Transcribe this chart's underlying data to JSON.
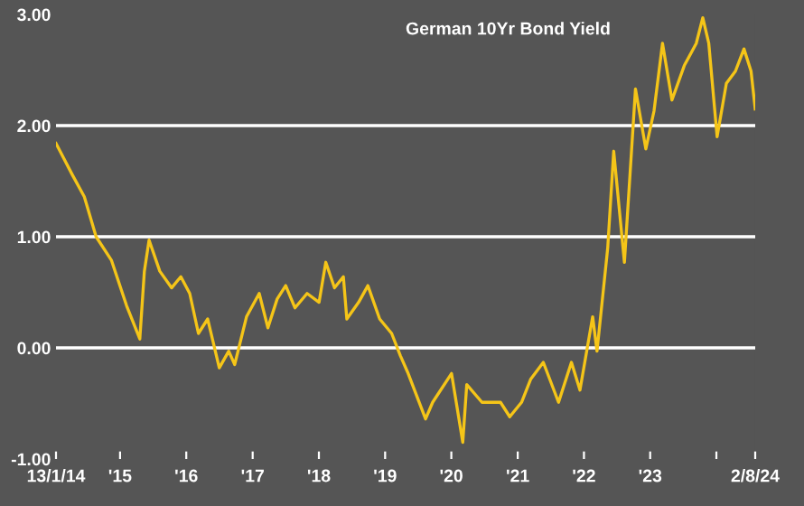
{
  "chart_data": {
    "type": "line",
    "title": "German 10Yr Bond Yield",
    "x": [
      "2014-01-13",
      "2014-04-12",
      "2014-06-18",
      "2014-08-22",
      "2014-11-14",
      "2015-02-06",
      "2015-04-20",
      "2015-05-15",
      "2015-06-10",
      "2015-08-08",
      "2015-10-12",
      "2015-12-02",
      "2016-01-20",
      "2016-03-08",
      "2016-04-28",
      "2016-07-01",
      "2016-08-22",
      "2016-09-24",
      "2016-11-28",
      "2017-02-06",
      "2017-03-26",
      "2017-05-16",
      "2017-07-02",
      "2017-08-22",
      "2017-10-28",
      "2018-01-02",
      "2018-02-08",
      "2018-03-28",
      "2018-05-16",
      "2018-06-04",
      "2018-08-08",
      "2018-09-28",
      "2018-12-02",
      "2019-02-06",
      "2019-03-26",
      "2019-05-08",
      "2019-08-12",
      "2019-09-20",
      "2020-01-02",
      "2020-03-04",
      "2020-03-26",
      "2020-06-18",
      "2020-09-28",
      "2020-11-18",
      "2021-01-22",
      "2021-03-14",
      "2021-05-22",
      "2021-08-14",
      "2021-10-24",
      "2021-12-10",
      "2022-02-18",
      "2022-03-14",
      "2022-05-12",
      "2022-06-14",
      "2022-08-12",
      "2022-10-12",
      "2022-12-08",
      "2023-01-22",
      "2023-03-10",
      "2023-05-01",
      "2023-07-08",
      "2023-09-12",
      "2023-10-18",
      "2023-11-20",
      "2024-01-05",
      "2024-02-25",
      "2024-04-15",
      "2024-06-01",
      "2024-07-10",
      "2024-08-02"
    ],
    "series": [
      {
        "color": "#f5c518",
        "values": [
          1.84,
          1.56,
          1.36,
          1.0,
          0.79,
          0.38,
          0.08,
          0.69,
          0.97,
          0.69,
          0.54,
          0.64,
          0.49,
          0.13,
          0.26,
          -0.18,
          -0.03,
          -0.15,
          0.28,
          0.49,
          0.18,
          0.44,
          0.56,
          0.36,
          0.49,
          0.41,
          0.77,
          0.54,
          0.64,
          0.26,
          0.41,
          0.56,
          0.26,
          0.13,
          -0.07,
          -0.23,
          -0.64,
          -0.49,
          -0.23,
          -0.85,
          -0.33,
          -0.49,
          -0.49,
          -0.62,
          -0.49,
          -0.28,
          -0.13,
          -0.49,
          -0.13,
          -0.38,
          0.28,
          -0.03,
          0.9,
          1.77,
          0.77,
          2.33,
          1.79,
          2.13,
          2.74,
          2.23,
          2.54,
          2.74,
          2.97,
          2.74,
          1.9,
          2.38,
          2.49,
          2.69,
          2.49,
          2.15
        ]
      }
    ],
    "xlim": [
      "2014-01-13",
      "2024-08-02"
    ],
    "xticks": [
      {
        "value": "2014-01-13",
        "label": "13/1/14"
      },
      {
        "value": "2015-01-01",
        "label": "'15"
      },
      {
        "value": "2016-01-01",
        "label": "'16"
      },
      {
        "value": "2017-01-01",
        "label": "'17"
      },
      {
        "value": "2018-01-01",
        "label": "'18"
      },
      {
        "value": "2019-01-01",
        "label": "'19"
      },
      {
        "value": "2020-01-01",
        "label": "'20"
      },
      {
        "value": "2021-01-01",
        "label": "'21"
      },
      {
        "value": "2022-01-01",
        "label": "'22"
      },
      {
        "value": "2023-01-01",
        "label": "'23"
      },
      {
        "value": "2024-01-01",
        "label": null
      },
      {
        "value": "2024-08-02",
        "label": "2/8/24"
      }
    ],
    "ylim": [
      -1,
      3
    ],
    "yticks": [
      {
        "value": 3,
        "label": "3.00"
      },
      {
        "value": 2,
        "label": "2.00"
      },
      {
        "value": 1,
        "label": "1.00"
      },
      {
        "value": 0,
        "label": "0.00"
      },
      {
        "value": -1,
        "label": "-1.00"
      }
    ],
    "ref_lines": [
      {
        "axis": "y",
        "value": 2,
        "color": "#ffffff"
      },
      {
        "axis": "y",
        "value": 1,
        "color": "#ffffff"
      },
      {
        "axis": "y",
        "value": 0,
        "color": "#ffffff"
      }
    ],
    "grid": false,
    "legend": false,
    "marker": "none",
    "line_style": "solid"
  }
}
